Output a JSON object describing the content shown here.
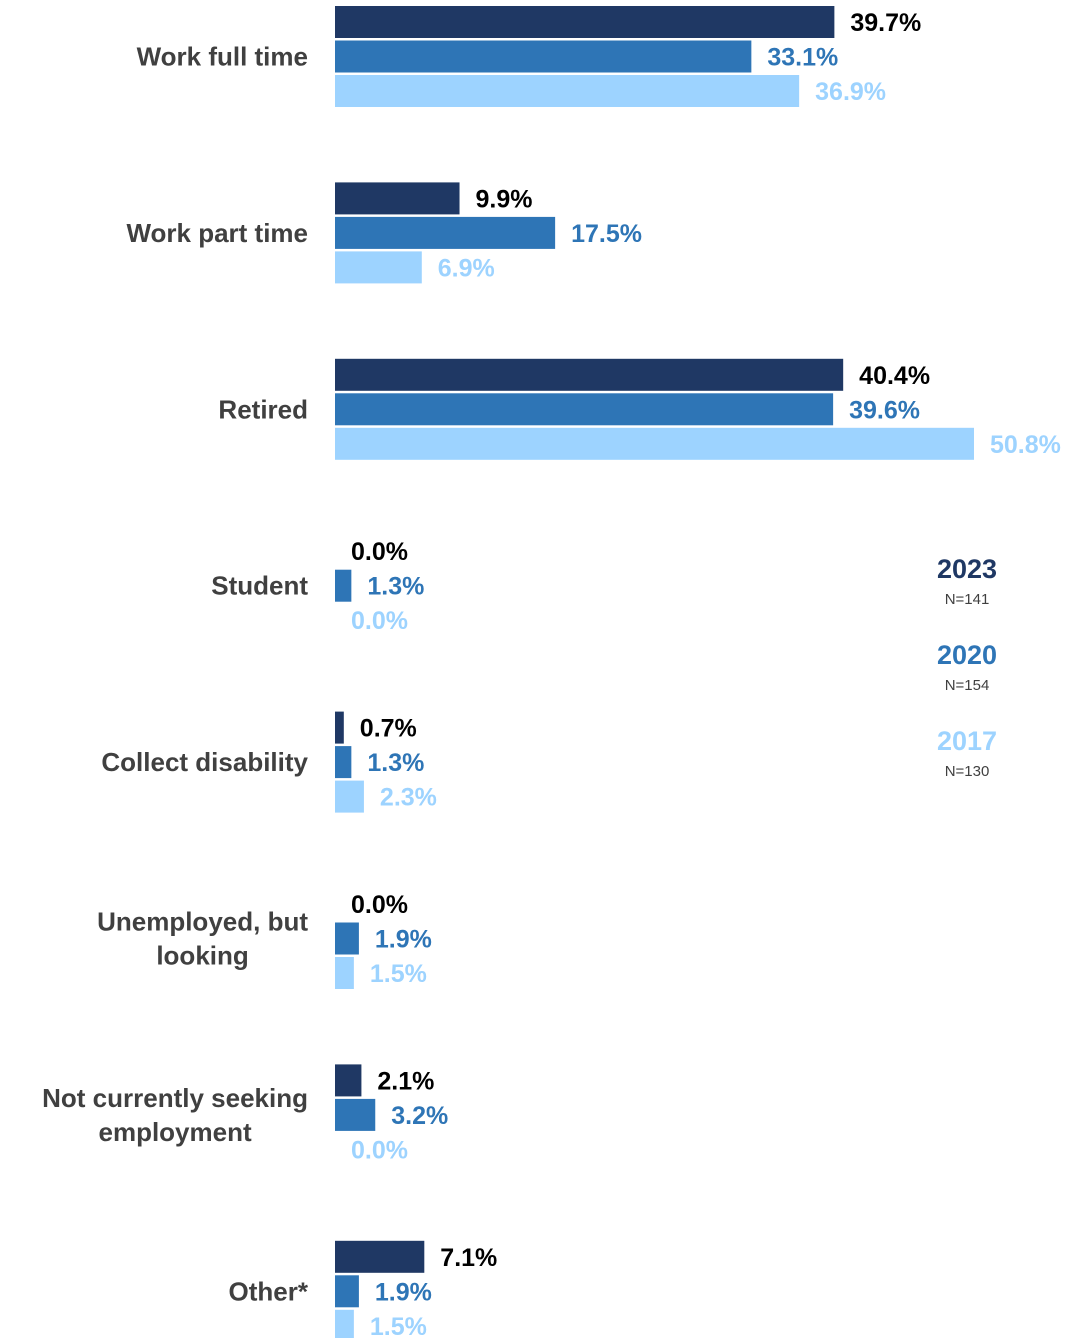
{
  "chart_data": {
    "type": "bar",
    "orientation": "horizontal",
    "categories": [
      [
        "Work full time"
      ],
      [
        "Work part time"
      ],
      [
        "Retired"
      ],
      [
        "Student"
      ],
      [
        "Collect disability"
      ],
      [
        "Unemployed, but",
        "looking"
      ],
      [
        "Not currently seeking",
        "employment"
      ],
      [
        "Other*"
      ]
    ],
    "series": [
      {
        "name": "2023",
        "n_label": "N=141",
        "color": "#1f3864",
        "label_color": "#000000",
        "values": [
          39.7,
          9.9,
          40.4,
          0.0,
          0.7,
          0.0,
          2.1,
          7.1
        ],
        "value_labels": [
          "39.7%",
          "9.9%",
          "40.4%",
          "0.0%",
          "0.7%",
          "0.0%",
          "2.1%",
          "7.1%"
        ]
      },
      {
        "name": "2020",
        "n_label": "N=154",
        "color": "#2e75b6",
        "label_color": "#2e75b6",
        "values": [
          33.1,
          17.5,
          39.6,
          1.3,
          1.3,
          1.9,
          3.2,
          1.9
        ],
        "value_labels": [
          "33.1%",
          "17.5%",
          "39.6%",
          "1.3%",
          "1.3%",
          "1.9%",
          "3.2%",
          "1.9%"
        ]
      },
      {
        "name": "2017",
        "n_label": "N=130",
        "color": "#9dd3ff",
        "label_color": "#9dd3ff",
        "values": [
          36.9,
          6.9,
          50.8,
          0.0,
          2.3,
          1.5,
          0.0,
          1.5
        ],
        "value_labels": [
          "36.9%",
          "6.9%",
          "50.8%",
          "0.0%",
          "2.3%",
          "1.5%",
          "0.0%",
          "1.5%"
        ]
      }
    ],
    "xlim": [
      0,
      50.8
    ],
    "grid": false,
    "legend_position": "right"
  }
}
